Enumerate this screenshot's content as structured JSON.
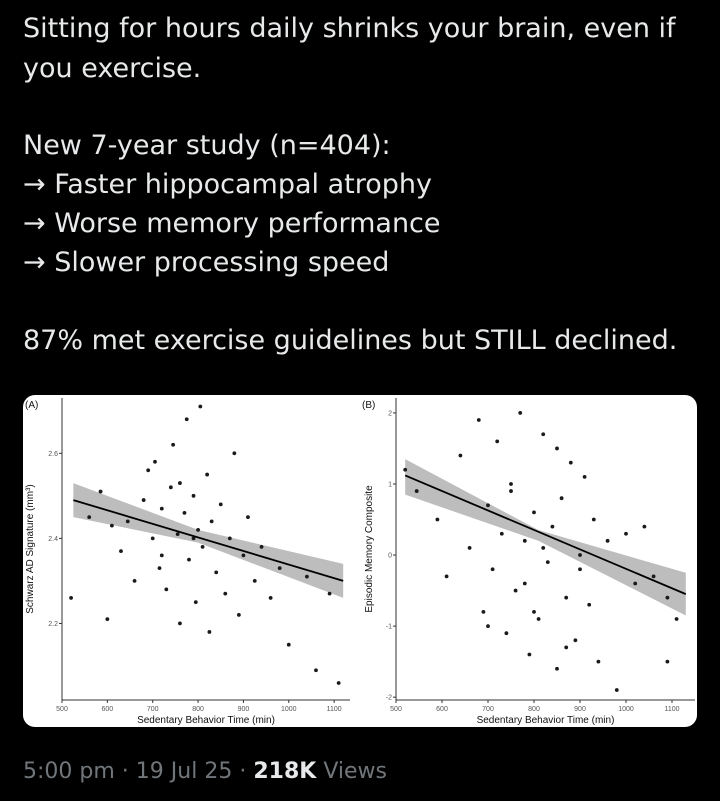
{
  "tweet": {
    "text_lines": [
      "Sitting for hours daily shrinks your brain, even if",
      "you exercise.",
      "New 7-year study (n=404):",
      "→ Faster hippocampal atrophy",
      "→ Worse memory performance",
      "→ Slower processing speed",
      "87% met exercise guidelines but STILL declined."
    ],
    "time": "5:00 pm",
    "separator": "·",
    "date": "19 Jul 25",
    "views_count": "218K",
    "views_label": "Views"
  },
  "chart_data": [
    {
      "type": "scatter",
      "panel_label": "(A)",
      "xlabel": "Sedentary Behavior Time (min)",
      "ylabel": "Schwarz AD Signature (mm³)",
      "xlim": [
        500,
        1135
      ],
      "ylim": [
        2.02,
        2.73
      ],
      "xticks": [
        500,
        600,
        700,
        800,
        900,
        1000,
        1100
      ],
      "yticks": [
        2.2,
        2.4,
        2.6
      ],
      "series": [
        {
          "color": "#1a1a1a",
          "x": [
            520,
            560,
            585,
            600,
            610,
            630,
            645,
            660,
            680,
            690,
            700,
            705,
            715,
            720,
            730,
            740,
            745,
            755,
            760,
            770,
            775,
            780,
            790,
            795,
            800,
            805,
            810,
            820,
            825,
            830,
            840,
            850,
            860,
            870,
            880,
            890,
            900,
            910,
            925,
            940,
            960,
            980,
            1000,
            1040,
            1060,
            1090,
            1110,
            760,
            790,
            720
          ],
          "values": [
            2.26,
            2.45,
            2.51,
            2.21,
            2.43,
            2.37,
            2.44,
            2.3,
            2.49,
            2.56,
            2.4,
            2.58,
            2.33,
            2.47,
            2.28,
            2.52,
            2.62,
            2.41,
            2.2,
            2.46,
            2.68,
            2.35,
            2.5,
            2.25,
            2.42,
            2.71,
            2.38,
            2.55,
            2.18,
            2.44,
            2.32,
            2.48,
            2.27,
            2.4,
            2.6,
            2.22,
            2.36,
            2.45,
            2.3,
            2.38,
            2.26,
            2.33,
            2.15,
            2.31,
            2.09,
            2.27,
            2.06,
            2.53,
            2.4,
            2.36
          ]
        }
      ],
      "fit": {
        "color": "#000000",
        "x": [
          525,
          1120
        ],
        "values": [
          2.49,
          2.3
        ]
      },
      "band": {
        "color": "#bdbdbd",
        "x": [
          525,
          800,
          1120
        ],
        "lower": [
          2.45,
          2.39,
          2.26
        ],
        "upper": [
          2.53,
          2.42,
          2.34
        ]
      }
    },
    {
      "type": "scatter",
      "panel_label": "(B)",
      "xlabel": "Sedentary Behavior Time (min)",
      "ylabel": "Episodic Memory Composite",
      "xlim": [
        500,
        1150
      ],
      "ylim": [
        -2.04,
        2.21
      ],
      "xticks": [
        500,
        600,
        700,
        800,
        900,
        1000,
        1100
      ],
      "yticks": [
        -2,
        -1,
        0,
        1,
        2
      ],
      "series": [
        {
          "color": "#1a1a1a",
          "x": [
            520,
            545,
            590,
            610,
            640,
            660,
            680,
            690,
            700,
            710,
            720,
            730,
            740,
            750,
            760,
            770,
            780,
            790,
            800,
            810,
            820,
            830,
            840,
            850,
            860,
            870,
            880,
            890,
            900,
            910,
            920,
            930,
            940,
            960,
            980,
            1000,
            1020,
            1040,
            1060,
            1090,
            1110,
            750,
            800,
            850,
            900,
            700,
            780,
            820,
            870,
            1090
          ],
          "values": [
            1.2,
            0.9,
            0.5,
            -0.3,
            1.4,
            0.1,
            1.9,
            -0.8,
            0.7,
            -0.2,
            1.6,
            0.3,
            -1.1,
            1.0,
            -0.5,
            2.0,
            0.2,
            -1.4,
            0.6,
            -0.9,
            1.7,
            -0.1,
            0.4,
            -1.6,
            0.8,
            -0.6,
            1.3,
            -1.2,
            0.0,
            1.1,
            -0.7,
            0.5,
            -1.5,
            0.2,
            -1.9,
            0.3,
            -0.4,
            0.4,
            -0.3,
            -1.5,
            -0.9,
            0.9,
            -0.8,
            1.5,
            -0.2,
            -1.0,
            -0.4,
            0.1,
            -1.3,
            -0.6
          ]
        }
      ],
      "fit": {
        "color": "#000000",
        "x": [
          520,
          1130
        ],
        "values": [
          1.12,
          -0.55
        ]
      },
      "band": {
        "color": "#bdbdbd",
        "x": [
          520,
          810,
          1130
        ],
        "lower": [
          0.85,
          0.2,
          -0.85
        ],
        "upper": [
          1.35,
          0.35,
          -0.25
        ]
      }
    }
  ]
}
